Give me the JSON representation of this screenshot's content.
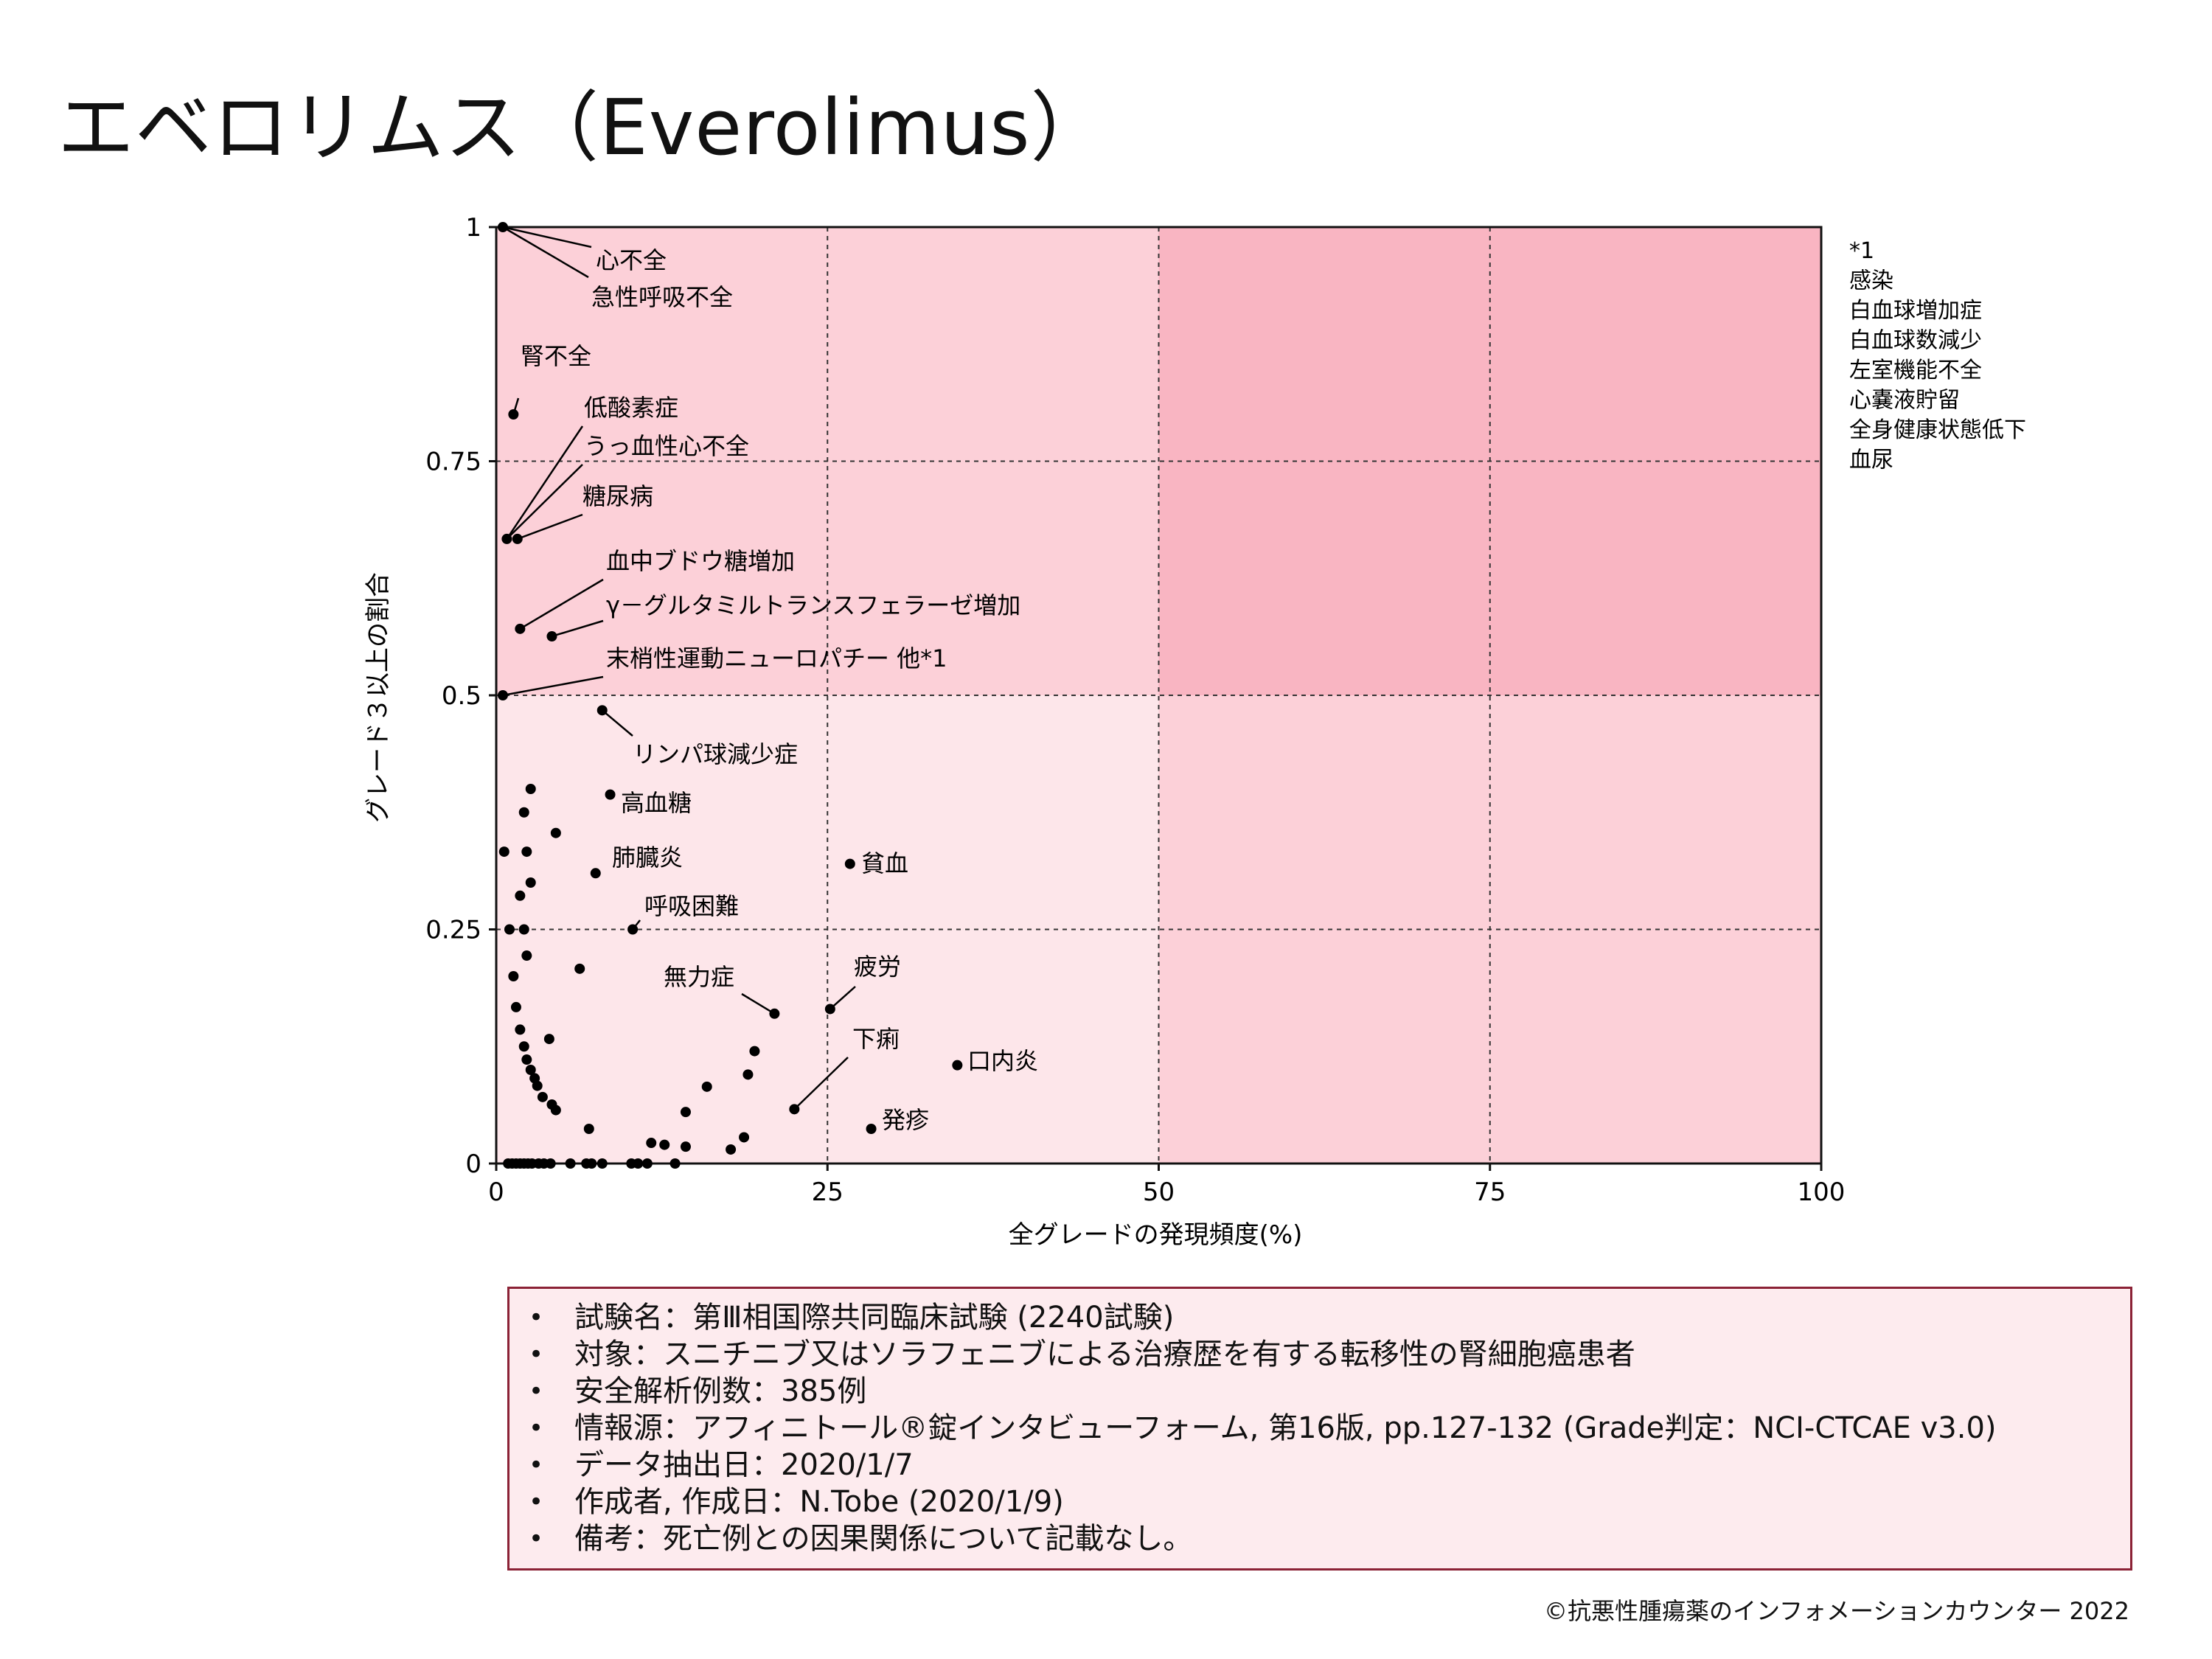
{
  "title": "エベロリムス（Everolimus）",
  "chart_data": {
    "type": "scatter",
    "xlabel": "全グレードの発現頻度(%)",
    "ylabel": "グレード３以上の割合",
    "xlim": [
      0,
      100
    ],
    "ylim": [
      0,
      1
    ],
    "x_ticks": [
      "0",
      "25",
      "50",
      "75",
      "100"
    ],
    "y_ticks": [
      "0",
      "0.25",
      "0.5",
      "0.75",
      "1"
    ],
    "grid": "dashed",
    "highlight_regions": [
      {
        "x": [
          0,
          50
        ],
        "y": [
          0,
          1
        ],
        "color": "#fde6ea"
      },
      {
        "x": [
          50,
          100
        ],
        "y": [
          0,
          1
        ],
        "color": "#fcd0d8"
      },
      {
        "x": [
          0,
          50
        ],
        "y": [
          0.5,
          1
        ],
        "color": "#fcd0d8"
      },
      {
        "x": [
          50,
          100
        ],
        "y": [
          0.5,
          1
        ],
        "color": "#f9b5c2"
      }
    ],
    "side_note": [
      "*1",
      "感染",
      "白血球増加症",
      "白血球数減少",
      "左室機能不全",
      "心嚢液貯留",
      "全身健康状態低下",
      "血尿"
    ],
    "labeled_points": [
      {
        "label": "心不全",
        "x": 0.5,
        "y": 1.0
      },
      {
        "label": "急性呼吸不全",
        "x": 0.5,
        "y": 1.0
      },
      {
        "label": "腎不全",
        "x": 1.3,
        "y": 0.8
      },
      {
        "label": "低酸素症",
        "x": 0.8,
        "y": 0.667
      },
      {
        "label": "うっ血性心不全",
        "x": 0.8,
        "y": 0.667
      },
      {
        "label": "糖尿病",
        "x": 1.6,
        "y": 0.667
      },
      {
        "label": "血中ブドウ糖増加",
        "x": 1.8,
        "y": 0.571
      },
      {
        "label": "γ－グルタミルトランスフェラーゼ増加",
        "x": 4.2,
        "y": 0.563
      },
      {
        "label": "末梢性運動ニューロパチー 他*1",
        "x": 0.5,
        "y": 0.5
      },
      {
        "label": "リンパ球減少症",
        "x": 8.0,
        "y": 0.484
      },
      {
        "label": "高血糖",
        "x": 8.6,
        "y": 0.394
      },
      {
        "label": "肺臓炎",
        "x": 7.5,
        "y": 0.31
      },
      {
        "label": "貧血",
        "x": 26.7,
        "y": 0.32
      },
      {
        "label": "呼吸困難",
        "x": 10.3,
        "y": 0.25
      },
      {
        "label": "無力症",
        "x": 21.0,
        "y": 0.16
      },
      {
        "label": "疲労",
        "x": 25.2,
        "y": 0.165
      },
      {
        "label": "口内炎",
        "x": 34.8,
        "y": 0.105
      },
      {
        "label": "下痢",
        "x": 22.5,
        "y": 0.058
      },
      {
        "label": "発疹",
        "x": 28.3,
        "y": 0.037
      }
    ],
    "points": [
      {
        "x": 0.5,
        "y": 1.0
      },
      {
        "x": 1.3,
        "y": 0.8
      },
      {
        "x": 0.8,
        "y": 0.667
      },
      {
        "x": 1.6,
        "y": 0.667
      },
      {
        "x": 1.8,
        "y": 0.571
      },
      {
        "x": 4.2,
        "y": 0.563
      },
      {
        "x": 0.5,
        "y": 0.5
      },
      {
        "x": 8.0,
        "y": 0.484
      },
      {
        "x": 8.6,
        "y": 0.394
      },
      {
        "x": 7.5,
        "y": 0.31
      },
      {
        "x": 26.7,
        "y": 0.32
      },
      {
        "x": 10.3,
        "y": 0.25
      },
      {
        "x": 21.0,
        "y": 0.16
      },
      {
        "x": 25.2,
        "y": 0.165
      },
      {
        "x": 34.8,
        "y": 0.105
      },
      {
        "x": 22.5,
        "y": 0.058
      },
      {
        "x": 28.3,
        "y": 0.037
      },
      {
        "x": 2.6,
        "y": 0.4
      },
      {
        "x": 2.1,
        "y": 0.375
      },
      {
        "x": 4.5,
        "y": 0.353
      },
      {
        "x": 0.6,
        "y": 0.333
      },
      {
        "x": 2.3,
        "y": 0.333
      },
      {
        "x": 2.6,
        "y": 0.3
      },
      {
        "x": 1.8,
        "y": 0.286
      },
      {
        "x": 1.0,
        "y": 0.25
      },
      {
        "x": 2.1,
        "y": 0.25
      },
      {
        "x": 2.3,
        "y": 0.222
      },
      {
        "x": 6.3,
        "y": 0.208
      },
      {
        "x": 1.3,
        "y": 0.2
      },
      {
        "x": 1.5,
        "y": 0.167
      },
      {
        "x": 1.8,
        "y": 0.143
      },
      {
        "x": 4.0,
        "y": 0.133
      },
      {
        "x": 2.1,
        "y": 0.125
      },
      {
        "x": 2.3,
        "y": 0.111
      },
      {
        "x": 2.6,
        "y": 0.1
      },
      {
        "x": 2.9,
        "y": 0.091
      },
      {
        "x": 3.1,
        "y": 0.083
      },
      {
        "x": 3.5,
        "y": 0.071
      },
      {
        "x": 4.2,
        "y": 0.063
      },
      {
        "x": 4.5,
        "y": 0.057
      },
      {
        "x": 7.0,
        "y": 0.037
      },
      {
        "x": 19.5,
        "y": 0.12
      },
      {
        "x": 19.0,
        "y": 0.095
      },
      {
        "x": 15.9,
        "y": 0.082
      },
      {
        "x": 14.3,
        "y": 0.055
      },
      {
        "x": 18.7,
        "y": 0.028
      },
      {
        "x": 11.7,
        "y": 0.022
      },
      {
        "x": 12.7,
        "y": 0.02
      },
      {
        "x": 14.3,
        "y": 0.018
      },
      {
        "x": 17.7,
        "y": 0.015
      },
      {
        "x": 0.9,
        "y": 0
      },
      {
        "x": 1.2,
        "y": 0
      },
      {
        "x": 1.5,
        "y": 0
      },
      {
        "x": 1.8,
        "y": 0
      },
      {
        "x": 2.1,
        "y": 0
      },
      {
        "x": 2.4,
        "y": 0
      },
      {
        "x": 2.7,
        "y": 0
      },
      {
        "x": 3.2,
        "y": 0
      },
      {
        "x": 3.6,
        "y": 0
      },
      {
        "x": 4.1,
        "y": 0
      },
      {
        "x": 5.6,
        "y": 0
      },
      {
        "x": 6.8,
        "y": 0
      },
      {
        "x": 7.2,
        "y": 0
      },
      {
        "x": 8.0,
        "y": 0
      },
      {
        "x": 10.2,
        "y": 0
      },
      {
        "x": 10.7,
        "y": 0
      },
      {
        "x": 11.4,
        "y": 0
      },
      {
        "x": 13.5,
        "y": 0
      }
    ]
  },
  "info": {
    "items": [
      "試験名：第Ⅲ相国際共同臨床試験 (2240試験)",
      "対象：スニチニブ又はソラフェニブによる治療歴を有する転移性の腎細胞癌患者",
      "安全解析例数：385例",
      "情報源：アフィニトール®錠インタビューフォーム, 第16版, pp.127-132 (Grade判定：NCI-CTCAE v3.0)",
      "データ抽出日：2020/1/7",
      "作成者, 作成日：N.Tobe (2020/1/9)",
      "備考：死亡例との因果関係について記載なし。"
    ]
  },
  "copyright": "©抗悪性腫瘍薬のインフォメーションカウンター 2022"
}
